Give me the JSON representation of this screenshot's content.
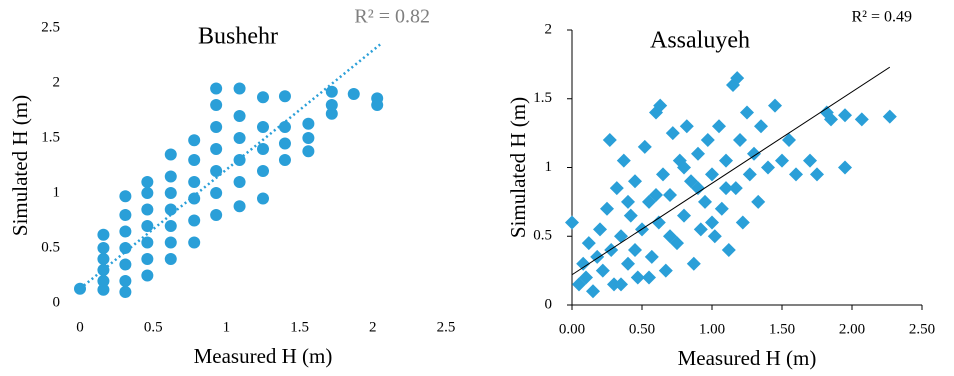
{
  "chart_data": [
    {
      "type": "scatter",
      "title": "Bushehr",
      "annotation": "R² = 0.82",
      "x_label": "Measured H (m)",
      "y_label": "Simulated H (m)",
      "color": "#2a9fd8",
      "marker": "circle",
      "axis_lines": false,
      "trendline_style": "dotted",
      "annotation_color": "#7f7f7f",
      "xlim": [
        0,
        2.5
      ],
      "ylim": [
        0,
        2.5
      ],
      "xticks": [
        0,
        0.5,
        1,
        1.5,
        2,
        2.5
      ],
      "yticks": [
        0,
        0.5,
        1,
        1.5,
        2,
        2.5
      ],
      "trendline": {
        "x": [
          0,
          2.05
        ],
        "y": [
          0.13,
          2.35
        ]
      },
      "x": [
        0,
        0.16,
        0.16,
        0.16,
        0.16,
        0.16,
        0.16,
        0.31,
        0.31,
        0.31,
        0.31,
        0.31,
        0.31,
        0.31,
        0.46,
        0.46,
        0.46,
        0.46,
        0.46,
        0.46,
        0.46,
        0.62,
        0.62,
        0.62,
        0.62,
        0.62,
        0.62,
        0.62,
        0.78,
        0.78,
        0.78,
        0.78,
        0.78,
        0.78,
        0.93,
        0.93,
        0.93,
        0.93,
        0.93,
        0.93,
        0.93,
        1.09,
        1.09,
        1.09,
        1.09,
        1.09,
        1.09,
        1.25,
        1.25,
        1.25,
        1.25,
        1.25,
        1.4,
        1.4,
        1.4,
        1.4,
        1.56,
        1.56,
        1.56,
        1.72,
        1.72,
        1.72,
        1.87,
        2.03,
        2.03
      ],
      "values": [
        0.13,
        0.12,
        0.2,
        0.3,
        0.4,
        0.5,
        0.62,
        0.1,
        0.2,
        0.35,
        0.5,
        0.65,
        0.8,
        0.97,
        0.25,
        0.4,
        0.55,
        0.7,
        0.85,
        1.0,
        1.1,
        0.4,
        0.55,
        0.7,
        0.85,
        1.0,
        1.15,
        1.35,
        0.55,
        0.75,
        0.95,
        1.1,
        1.3,
        1.48,
        0.8,
        1.0,
        1.2,
        1.4,
        1.6,
        1.8,
        1.95,
        0.88,
        1.1,
        1.3,
        1.5,
        1.7,
        1.95,
        0.95,
        1.2,
        1.4,
        1.6,
        1.87,
        1.3,
        1.45,
        1.6,
        1.88,
        1.38,
        1.5,
        1.63,
        1.72,
        1.8,
        1.92,
        1.9,
        1.8,
        1.86
      ]
    },
    {
      "type": "scatter",
      "title": "Assaluyeh",
      "annotation": "R² = 0.49",
      "x_label": "Measured H (m)",
      "y_label": "Simulated H (m)",
      "color": "#2a9fd8",
      "marker": "diamond",
      "axis_lines": true,
      "trendline_style": "solid",
      "annotation_color": "#000000",
      "xlim": [
        0,
        2.5
      ],
      "ylim": [
        0,
        2
      ],
      "xticks": [
        {
          "value": 0,
          "label": "0.00"
        },
        {
          "value": 0.5,
          "label": "0.50"
        },
        {
          "value": 1,
          "label": "1.00"
        },
        {
          "value": 1.5,
          "label": "1.50"
        },
        {
          "value": 2,
          "label": "2.00"
        },
        {
          "value": 2.5,
          "label": "2.50"
        }
      ],
      "yticks": [
        0,
        0.5,
        1,
        1.5,
        2
      ],
      "trendline": {
        "x": [
          0,
          2.27
        ],
        "y": [
          0.22,
          1.73
        ]
      },
      "x": [
        0.0,
        0.05,
        0.08,
        0.1,
        0.12,
        0.15,
        0.18,
        0.2,
        0.22,
        0.25,
        0.27,
        0.28,
        0.3,
        0.32,
        0.35,
        0.37,
        0.4,
        0.42,
        0.45,
        0.47,
        0.5,
        0.52,
        0.55,
        0.57,
        0.6,
        0.62,
        0.65,
        0.67,
        0.7,
        0.72,
        0.75,
        0.77,
        0.8,
        0.82,
        0.85,
        0.87,
        0.9,
        0.92,
        0.95,
        0.97,
        1.0,
        1.02,
        1.05,
        1.07,
        1.1,
        1.12,
        1.15,
        1.17,
        1.2,
        1.22,
        1.25,
        1.27,
        1.3,
        1.33,
        1.35,
        1.4,
        1.45,
        1.5,
        1.55,
        1.6,
        1.7,
        1.75,
        1.82,
        1.85,
        1.95,
        1.95,
        2.07,
        2.27,
        1.18,
        0.63,
        0.8,
        0.35,
        0.4,
        0.45,
        0.55,
        0.6,
        0.7,
        0.9,
        1.0,
        1.1
      ],
      "values": [
        0.6,
        0.15,
        0.3,
        0.2,
        0.45,
        0.1,
        0.35,
        0.55,
        0.25,
        0.7,
        1.2,
        0.4,
        0.15,
        0.85,
        0.5,
        1.05,
        0.3,
        0.65,
        0.9,
        0.2,
        0.55,
        1.15,
        0.75,
        0.35,
        1.4,
        0.6,
        0.95,
        0.25,
        0.8,
        1.25,
        0.45,
        1.05,
        0.65,
        1.3,
        0.9,
        0.3,
        1.1,
        0.55,
        0.75,
        1.2,
        0.95,
        0.5,
        1.3,
        0.7,
        1.05,
        0.4,
        1.6,
        0.85,
        1.2,
        0.6,
        1.4,
        0.95,
        1.1,
        0.75,
        1.3,
        1.0,
        1.45,
        1.05,
        1.2,
        0.95,
        1.05,
        0.95,
        1.4,
        1.35,
        1.0,
        1.38,
        1.35,
        1.37,
        1.65,
        1.45,
        1.0,
        0.15,
        0.75,
        0.4,
        0.2,
        0.8,
        0.5,
        0.85,
        0.6,
        0.85
      ]
    }
  ]
}
